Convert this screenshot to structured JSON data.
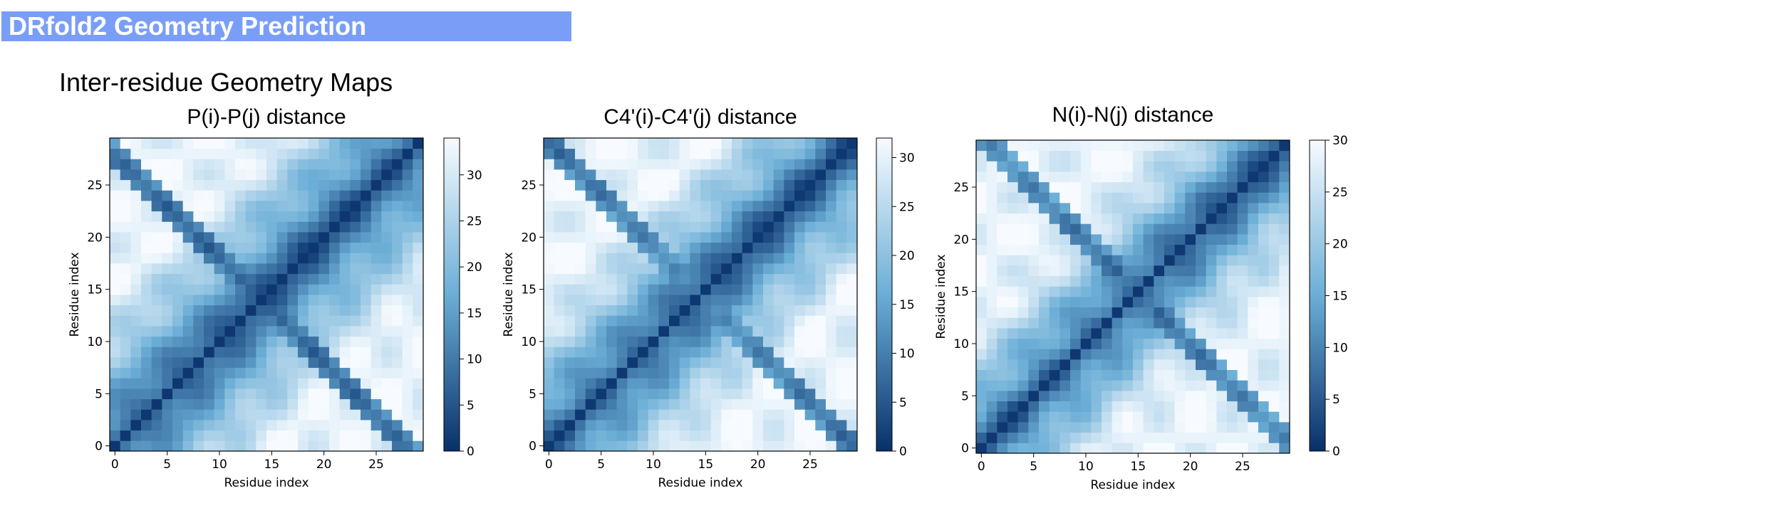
{
  "header": {
    "title": "DRfold2 Geometry Prediction"
  },
  "section": {
    "title": "Inter-residue Geometry Maps"
  },
  "colormap": {
    "name": "Blues_r",
    "low": "#08306b",
    "mid": "#6baed6",
    "high": "#f7fbff"
  },
  "chart_data": [
    {
      "type": "heatmap",
      "title": "P(i)-P(j) distance",
      "xlabel": "Residue index",
      "ylabel": "Residue index",
      "n": 30,
      "xticks": [
        0,
        5,
        10,
        15,
        20,
        25
      ],
      "yticks": [
        0,
        5,
        10,
        15,
        20,
        25
      ],
      "colorbar": {
        "vmin": 0,
        "vmax": 34,
        "ticks": [
          0,
          5,
          10,
          15,
          20,
          25,
          30
        ]
      },
      "diagonal_value": 0,
      "notes": "Symmetric distance map; dark diagonal near 0, off-diagonal values up to ~33"
    },
    {
      "type": "heatmap",
      "title": "C4'(i)-C4'(j) distance",
      "xlabel": "Residue index",
      "ylabel": "Residue index",
      "n": 30,
      "xticks": [
        0,
        5,
        10,
        15,
        20,
        25
      ],
      "yticks": [
        0,
        5,
        10,
        15,
        20,
        25
      ],
      "colorbar": {
        "vmin": 0,
        "vmax": 32,
        "ticks": [
          0,
          5,
          10,
          15,
          20,
          25,
          30
        ]
      },
      "diagonal_value": 0,
      "notes": "Symmetric distance map; dark diagonal near 0, off-diagonal values up to ~32"
    },
    {
      "type": "heatmap",
      "title": "N(i)-N(j) distance",
      "xlabel": "Residue index",
      "ylabel": "Residue index",
      "n": 30,
      "xticks": [
        0,
        5,
        10,
        15,
        20,
        25
      ],
      "yticks": [
        0,
        5,
        10,
        15,
        20,
        25
      ],
      "colorbar": {
        "vmin": 0,
        "vmax": 30,
        "ticks": [
          0,
          5,
          10,
          15,
          20,
          25,
          30
        ]
      },
      "diagonal_value": 0,
      "notes": "Symmetric distance map; dark diagonal near 0, off-diagonal values up to ~30"
    }
  ]
}
